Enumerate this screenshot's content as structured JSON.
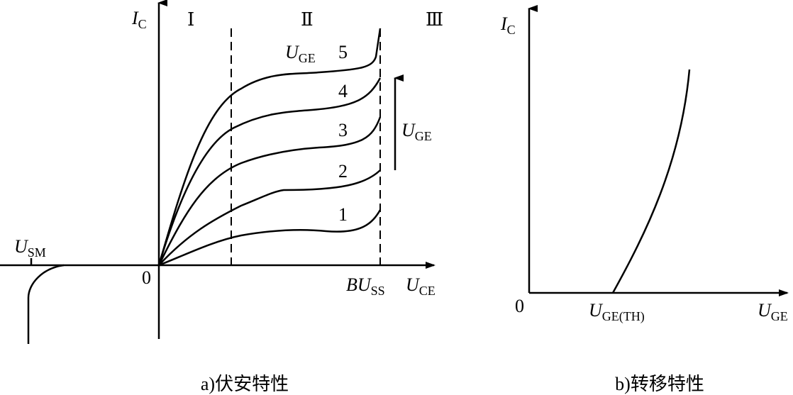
{
  "left": {
    "y_axis_label": {
      "main": "I",
      "sub": "C"
    },
    "regions": [
      "Ⅰ",
      "Ⅱ",
      "Ⅲ"
    ],
    "curve_family_label": {
      "main": "U",
      "sub": "GE"
    },
    "curve_labels": [
      "1",
      "2",
      "3",
      "4",
      "5"
    ],
    "arrow_label": {
      "main": "U",
      "sub": "GE"
    },
    "usm_label": {
      "main": "U",
      "sub": "SM"
    },
    "origin": "0",
    "bu_label": {
      "main": "BU",
      "sub": "SS"
    },
    "x_axis_label": {
      "main": "U",
      "sub": "CE"
    },
    "caption": "a)伏安特性"
  },
  "right": {
    "y_axis_label": {
      "main": "I",
      "sub": "C"
    },
    "origin": "0",
    "threshold_label": {
      "main": "U",
      "sub": "GE(TH)"
    },
    "x_axis_label": {
      "main": "U",
      "sub": "GE"
    },
    "caption": "b)转移特性"
  }
}
